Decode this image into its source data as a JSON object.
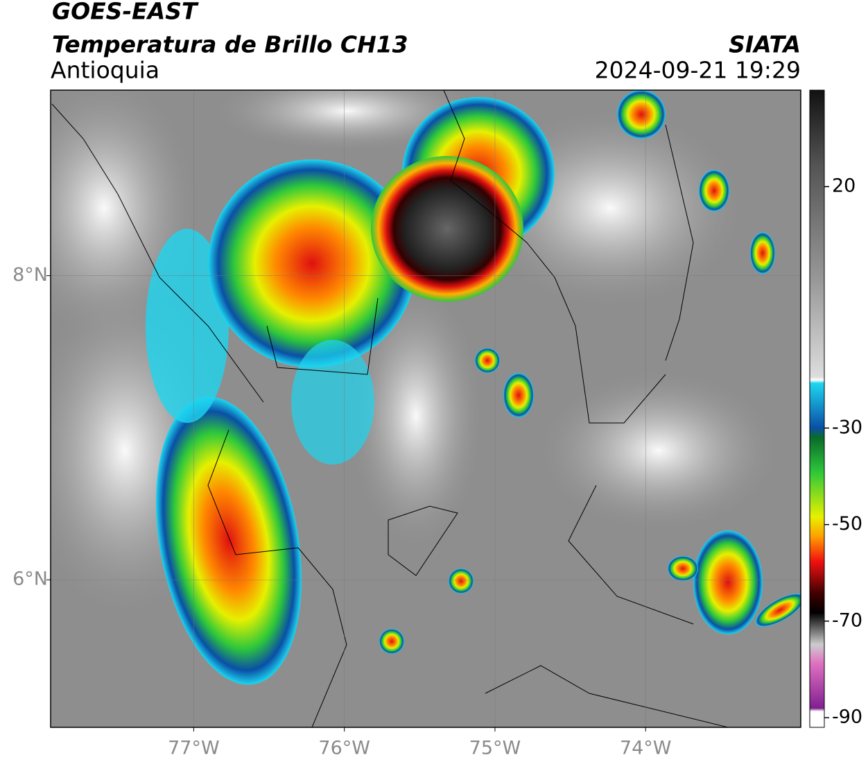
{
  "header": {
    "title": "GOES-EAST",
    "subtitle": "Temperatura de Brillo CH13",
    "region": "Antioquia",
    "source": "SIATA",
    "timestamp": "2024-09-21 19:29"
  },
  "map": {
    "lon_range": [
      -77.95,
      -72.97
    ],
    "lat_range": [
      5.03,
      9.22
    ],
    "lon_ticks": [
      {
        "value": -77,
        "label": "77°W"
      },
      {
        "value": -76,
        "label": "76°W"
      },
      {
        "value": -75,
        "label": "75°W"
      },
      {
        "value": -74,
        "label": "74°W"
      }
    ],
    "lat_ticks": [
      {
        "value": 8,
        "label": "8°N"
      },
      {
        "value": 6,
        "label": "6°N"
      }
    ],
    "grid": true
  },
  "colorbar": {
    "range": [
      -92,
      40
    ],
    "ticks": [
      20,
      -30,
      -50,
      -70,
      -90
    ]
  }
}
